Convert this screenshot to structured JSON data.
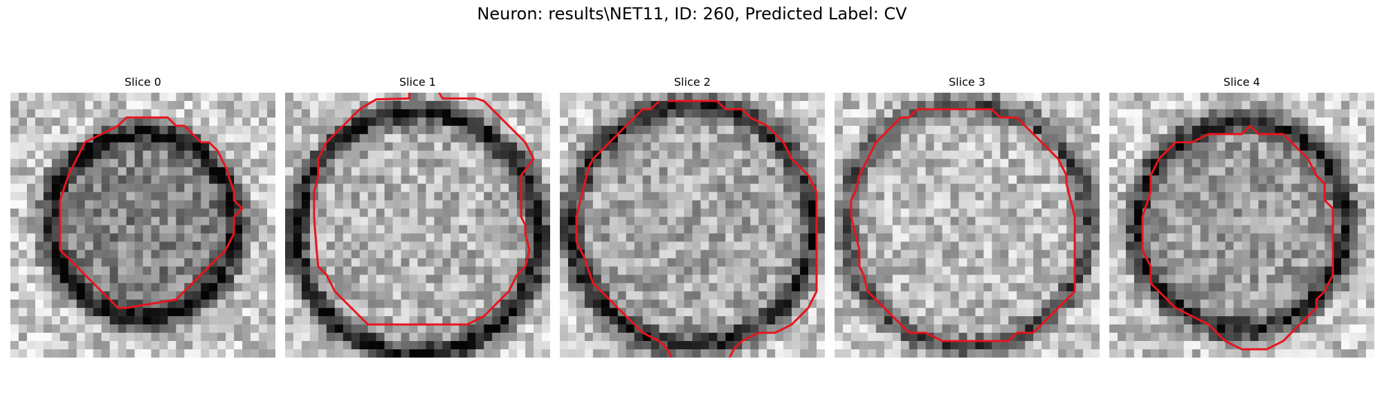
{
  "figure": {
    "title": "Neuron: results\\NET11, ID: 260, Predicted Label: CV"
  },
  "panels": [
    {
      "title": "Slice 0"
    },
    {
      "title": "Slice 1"
    },
    {
      "title": "Slice 2"
    },
    {
      "title": "Slice 3"
    },
    {
      "title": "Slice 4"
    }
  ],
  "colors": {
    "contour": "#e8141c",
    "background": "#ffffff"
  },
  "image": {
    "grid_size": 32,
    "colormap": "grayscale",
    "contour_shape": "octagon"
  }
}
